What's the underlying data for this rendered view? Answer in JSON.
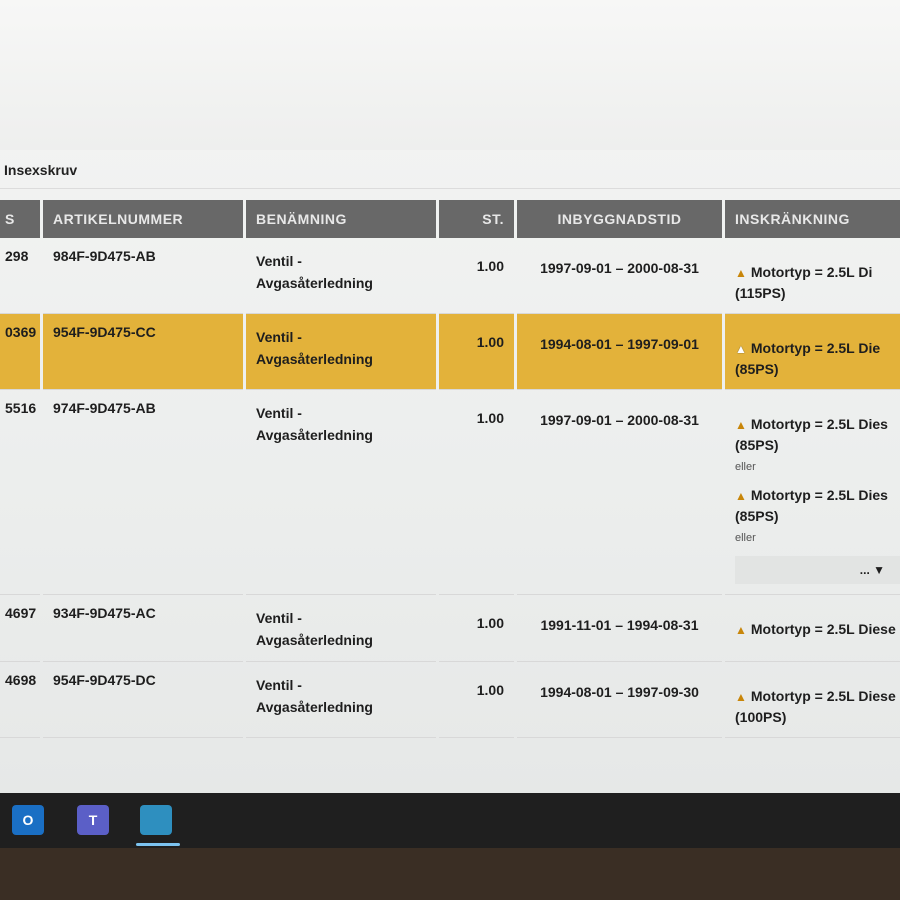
{
  "breadcrumb": "Insexskruv",
  "table": {
    "headers": [
      "S",
      "ARTIKELNUMMER",
      "BENÄMNING",
      "ST.",
      "INBYGGNADSTID",
      "INSKRÄNKNING"
    ],
    "rows": [
      {
        "id": "298",
        "article": "984F-9D475-AB",
        "name1": "Ventil -",
        "name2": "Avgasåterledning",
        "qty": "1.00",
        "period": "1997-09-01 – 2000-08-31",
        "restrictions": [
          {
            "text": "Motortyp = 2.5L Di",
            "hp": "(115PS)"
          }
        ],
        "selected": false
      },
      {
        "id": "0369",
        "article": "954F-9D475-CC",
        "name1": "Ventil -",
        "name2": "Avgasåterledning",
        "qty": "1.00",
        "period": "1994-08-01 – 1997-09-01",
        "restrictions": [
          {
            "text": "Motortyp = 2.5L Die",
            "hp": "(85PS)"
          }
        ],
        "selected": true
      },
      {
        "id": "5516",
        "article": "974F-9D475-AB",
        "name1": "Ventil -",
        "name2": "Avgasåterledning",
        "qty": "1.00",
        "period": "1997-09-01 – 2000-08-31",
        "restrictions": [
          {
            "text": "Motortyp = 2.5L Dies",
            "hp": "(85PS)"
          },
          {
            "text": "Motortyp = 2.5L Dies",
            "hp": "(85PS)"
          }
        ],
        "or_label": "eller",
        "more": "... ▼",
        "selected": false
      },
      {
        "id": "4697",
        "article": "934F-9D475-AC",
        "name1": "Ventil -",
        "name2": "Avgasåterledning",
        "qty": "1.00",
        "period": "1991-11-01 – 1994-08-31",
        "restrictions": [
          {
            "text": "Motortyp = 2.5L Diese",
            "hp": ""
          }
        ],
        "selected": false
      },
      {
        "id": "4698",
        "article": "954F-9D475-DC",
        "name1": "Ventil -",
        "name2": "Avgasåterledning",
        "qty": "1.00",
        "period": "1994-08-01 – 1997-09-30",
        "restrictions": [
          {
            "text": "Motortyp = 2.5L Diese",
            "hp": "(100PS)"
          }
        ],
        "selected": false
      }
    ]
  },
  "taskbar": {
    "apps": [
      {
        "icon": "outlook-icon",
        "label": "O",
        "color": "#1a6fc4"
      },
      {
        "icon": "teams-icon",
        "label": "T",
        "color": "#5b5fc7"
      },
      {
        "icon": "app-icon",
        "label": "",
        "color": "#2e8fbf",
        "active": true
      }
    ]
  },
  "colors": {
    "selected_row": "#e3b23a",
    "header": "#686868",
    "warning": "#c8860a"
  }
}
